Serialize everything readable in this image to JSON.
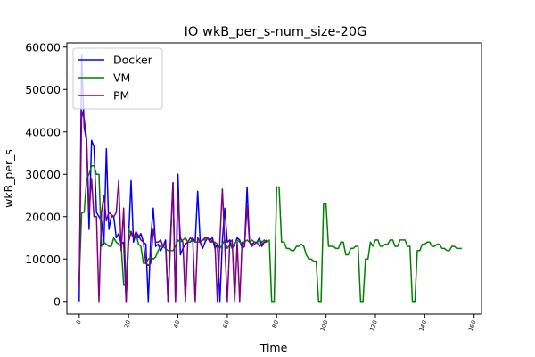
{
  "chart_data": {
    "type": "line",
    "title": "IO wkB_per_s-num_size-20G",
    "xlabel": "Time",
    "ylabel": "wkB_per_s",
    "xlim": [
      -5,
      163
    ],
    "ylim": [
      -3000,
      61000
    ],
    "xticks": [
      "0",
      "20",
      "40",
      "60",
      "80",
      "100",
      "120",
      "140",
      "160"
    ],
    "yticks": [
      "0",
      "10000",
      "20000",
      "30000",
      "40000",
      "50000",
      "60000"
    ],
    "legend_position": "top-left",
    "series": [
      {
        "name": "Docker",
        "color": "#0000ff",
        "x": [
          0,
          1,
          2,
          3,
          4,
          5,
          6,
          7,
          8,
          9,
          10,
          11,
          12,
          13,
          14,
          15,
          16,
          17,
          18,
          19,
          20,
          21,
          22,
          23,
          24,
          25,
          26,
          27,
          28,
          29,
          30,
          31,
          32,
          33,
          34,
          35,
          36,
          37,
          38,
          39,
          40,
          41,
          42,
          43,
          44,
          45,
          46,
          47,
          48,
          49,
          50,
          51,
          52,
          53,
          54,
          55,
          56,
          57,
          58,
          59,
          60,
          61,
          62,
          63,
          64,
          65,
          66,
          67,
          68,
          69,
          70,
          71,
          72,
          73,
          74,
          75,
          76
        ],
        "y": [
          0,
          58000,
          41000,
          38000,
          17000,
          38000,
          36500,
          21000,
          20000,
          19000,
          13500,
          36000,
          17000,
          20000,
          20000,
          15000,
          16000,
          13500,
          14000,
          0,
          15000,
          28500,
          14000,
          16000,
          15000,
          16000,
          14000,
          13500,
          0,
          15000,
          22000,
          13000,
          13500,
          12000,
          13000,
          14500,
          0,
          15500,
          28000,
          0,
          30000,
          11000,
          12500,
          13500,
          14000,
          14000,
          15000,
          14000,
          26000,
          14000,
          12500,
          14000,
          15000,
          14500,
          15000,
          12500,
          13500,
          0,
          14500,
          22000,
          14000,
          14500,
          12500,
          13500,
          15000,
          14500,
          12500,
          13000,
          27000,
          14000,
          13500,
          14000,
          14000,
          15000,
          13000,
          14000,
          14000
        ]
      },
      {
        "name": "VM",
        "color": "#008000",
        "x": [
          0,
          1,
          2,
          3,
          4,
          5,
          6,
          7,
          8,
          9,
          10,
          11,
          12,
          13,
          14,
          15,
          16,
          17,
          18,
          19,
          20,
          21,
          22,
          23,
          24,
          25,
          26,
          27,
          28,
          29,
          30,
          31,
          32,
          33,
          34,
          35,
          36,
          37,
          38,
          39,
          40,
          41,
          42,
          43,
          44,
          45,
          46,
          47,
          48,
          49,
          50,
          51,
          52,
          53,
          54,
          55,
          56,
          57,
          58,
          59,
          60,
          61,
          62,
          63,
          64,
          65,
          66,
          67,
          68,
          69,
          70,
          71,
          72,
          73,
          74,
          75,
          76,
          77,
          78,
          79,
          80,
          81,
          82,
          83,
          84,
          85,
          86,
          87,
          88,
          89,
          90,
          91,
          92,
          93,
          94,
          95,
          96,
          97,
          98,
          99,
          100,
          101,
          102,
          103,
          104,
          105,
          106,
          107,
          108,
          109,
          110,
          111,
          112,
          113,
          114,
          115,
          116,
          117,
          118,
          119,
          120,
          121,
          122,
          123,
          124,
          125,
          126,
          127,
          128,
          129,
          130,
          131,
          132,
          133,
          134,
          135,
          136,
          137,
          138,
          139,
          140,
          141,
          142,
          143,
          144,
          145,
          146,
          147,
          148,
          149,
          150,
          151,
          152,
          153,
          154,
          155
        ],
        "y": [
          5000,
          21000,
          21000,
          29000,
          30000,
          32000,
          32000,
          30000,
          30000,
          13000,
          14000,
          13500,
          13000,
          13000,
          15000,
          14000,
          13500,
          13000,
          4000,
          4000,
          17000,
          16000,
          15000,
          16000,
          13500,
          13000,
          9000,
          9000,
          10000,
          10500,
          10000,
          10500,
          12000,
          13000,
          13000,
          12500,
          12000,
          12000,
          12000,
          13000,
          14500,
          14000,
          14500,
          15000,
          14000,
          14000,
          14500,
          14000,
          14000,
          14000,
          14500,
          14500,
          15000,
          14000,
          14000,
          14000,
          13500,
          12500,
          13500,
          14500,
          12500,
          13500,
          12500,
          14000,
          14500,
          14000,
          13500,
          14000,
          14500,
          14000,
          14500,
          14000,
          14000,
          14500,
          14000,
          14500,
          14000,
          14500,
          0,
          0,
          27000,
          27000,
          14000,
          14000,
          12500,
          12500,
          12000,
          12000,
          13000,
          13000,
          13500,
          13000,
          11000,
          10000,
          10000,
          9500,
          9500,
          0,
          0,
          23000,
          23000,
          13000,
          13000,
          13000,
          12500,
          12500,
          14000,
          14000,
          11000,
          11000,
          12500,
          12500,
          13000,
          13000,
          0,
          0,
          10000,
          10000,
          14000,
          13000,
          14500,
          14500,
          13000,
          13000,
          13500,
          13500,
          14500,
          14500,
          13000,
          13000,
          14500,
          14500,
          14500,
          13000,
          13000,
          0,
          0,
          12000,
          12000,
          13500,
          13500,
          14000,
          14000,
          13000,
          13000,
          13500,
          13500,
          12500,
          12500,
          12000,
          12000,
          13000,
          13000,
          12500,
          12500,
          12500
        ]
      },
      {
        "name": "PM",
        "color": "#800080",
        "x": [
          0,
          1,
          2,
          3,
          4,
          5,
          6,
          7,
          8,
          9,
          10,
          11,
          12,
          13,
          14,
          15,
          16,
          17,
          18,
          19,
          20,
          21,
          22,
          23,
          24,
          25,
          26,
          27,
          28,
          29,
          30,
          31,
          32,
          33,
          34,
          35,
          36,
          37,
          38,
          39,
          40,
          41,
          42,
          43,
          44,
          45,
          46,
          47,
          48,
          49,
          50,
          51,
          52,
          53,
          54,
          55,
          56,
          57,
          58,
          59,
          60,
          61,
          62,
          63,
          64,
          65,
          66,
          67,
          68,
          69,
          70,
          71,
          72,
          73,
          74,
          75,
          76
        ],
        "y": [
          3500,
          45000,
          43000,
          38500,
          21000,
          29000,
          20000,
          20000,
          0,
          21000,
          25000,
          19000,
          21000,
          20500,
          20000,
          21000,
          28500,
          12000,
          22000,
          0,
          14000,
          16500,
          15000,
          16500,
          15500,
          14500,
          14000,
          9000,
          8500,
          9000,
          17000,
          14000,
          14000,
          14500,
          13000,
          13500,
          0,
          14500,
          28000,
          0,
          25000,
          15000,
          14000,
          0,
          14000,
          15000,
          14500,
          0,
          15000,
          14000,
          14500,
          15000,
          15000,
          14000,
          14500,
          13500,
          0,
          14500,
          26500,
          13500,
          0,
          14000,
          14500,
          0,
          14000,
          0,
          14000,
          13500,
          22500,
          14000,
          13000,
          13500,
          14000,
          13000,
          13500,
          14000,
          14500
        ]
      }
    ]
  }
}
